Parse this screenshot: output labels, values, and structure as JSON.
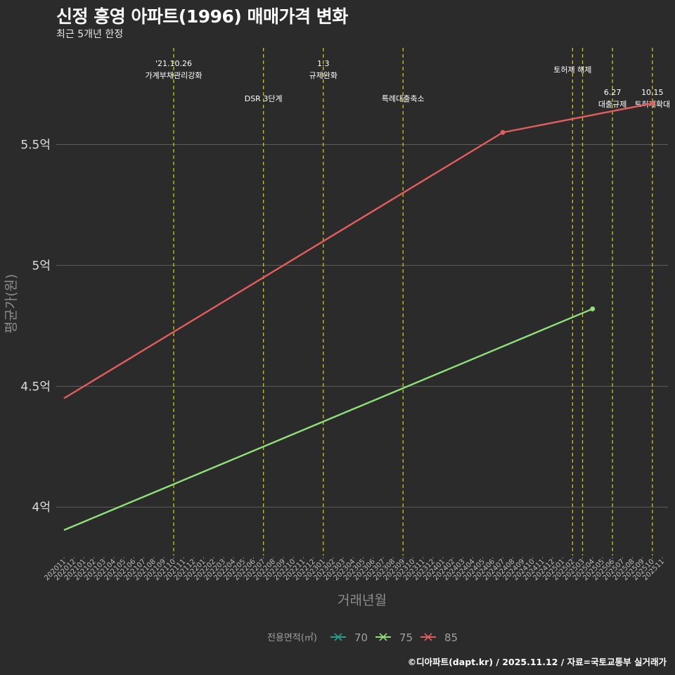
{
  "header": {
    "title": "신정 흥영 아파트(1996) 매매가격 변화",
    "subtitle": "최근 5개년 한정"
  },
  "credit": "©디아파트(dapt.kr) / 2025.11.12 / 자료=국토교통부 실거래가",
  "colors": {
    "s70": "#2a9d8f",
    "s75": "#90e07a",
    "s85": "#e35d5d",
    "event": "#c8c814"
  },
  "chart_data": {
    "type": "line",
    "title": "신정 흥영 아파트(1996) 매매가격 변화",
    "xlabel": "거래년월",
    "ylabel": "평균가(원)",
    "ylim": [
      3.8,
      5.9
    ],
    "yticks": [
      {
        "value": 4.0,
        "label": "4억"
      },
      {
        "value": 4.5,
        "label": "4.5억"
      },
      {
        "value": 5.0,
        "label": "5억"
      },
      {
        "value": 5.5,
        "label": "5.5억"
      }
    ],
    "x_categories": [
      "202011",
      "202012",
      "202101",
      "202102",
      "202103",
      "202104",
      "202105",
      "202106",
      "202107",
      "202108",
      "202109",
      "202110",
      "202111",
      "202112",
      "202201",
      "202202",
      "202203",
      "202204",
      "202205",
      "202206",
      "202207",
      "202208",
      "202209",
      "202210",
      "202211",
      "202212",
      "202301",
      "202302",
      "202303",
      "202304",
      "202305",
      "202306",
      "202307",
      "202308",
      "202309",
      "202310",
      "202311",
      "202312",
      "202401",
      "202402",
      "202403",
      "202404",
      "202405",
      "202406",
      "202407",
      "202408",
      "202409",
      "202410",
      "202411",
      "202412",
      "202501",
      "202502",
      "202503",
      "202504",
      "202505",
      "202506",
      "202507",
      "202508",
      "202509",
      "202510",
      "202511"
    ],
    "series": [
      {
        "name": "70",
        "color_key": "s70",
        "points": []
      },
      {
        "name": "75",
        "color_key": "s75",
        "points": [
          {
            "x": "202011",
            "y": 3.905,
            "marker": false
          },
          {
            "x": "202504",
            "y": 4.82,
            "marker": true
          }
        ]
      },
      {
        "name": "85",
        "color_key": "s85",
        "points": [
          {
            "x": "202011",
            "y": 4.45,
            "marker": false
          },
          {
            "x": "202407",
            "y": 5.55,
            "marker": true
          },
          {
            "x": "202510",
            "y": 5.67,
            "marker": true
          }
        ]
      }
    ],
    "legend_title": "전용면적(㎡)",
    "legend_position": "bottom",
    "events": [
      {
        "x": "202110",
        "lines": [
          "'21.10.26",
          "가계부채관리강화"
        ],
        "row": "top"
      },
      {
        "x": "202207",
        "lines": [
          "DSR 3단계"
        ],
        "row": "mid"
      },
      {
        "x": "202301",
        "lines": [
          "1.3",
          "규제완화"
        ],
        "row": "top"
      },
      {
        "x": "202309",
        "lines": [
          "특례대출축소"
        ],
        "row": "mid"
      },
      {
        "x": "202502",
        "lines": [
          "토허제 해제"
        ],
        "row": "top2"
      },
      {
        "x": "202503",
        "lines": [],
        "row": "none"
      },
      {
        "x": "202506",
        "lines": [
          "6.27",
          "대출규제"
        ],
        "row": "low"
      },
      {
        "x": "202510",
        "lines": [
          "10.15",
          "토허제확대"
        ],
        "row": "low"
      }
    ]
  }
}
